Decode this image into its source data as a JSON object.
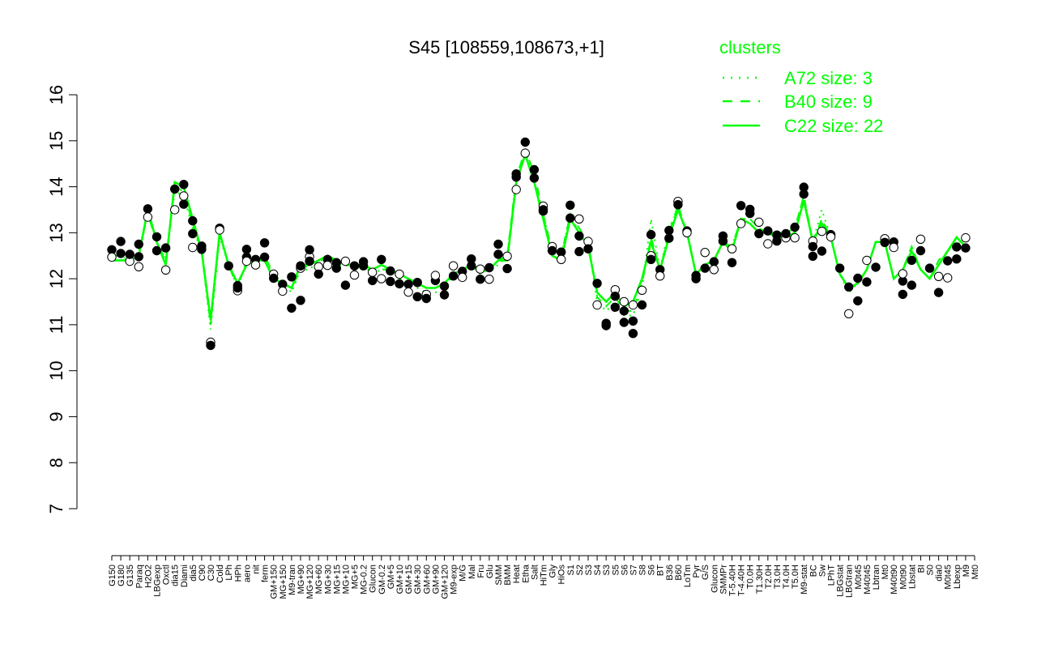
{
  "chart_data": {
    "type": "line",
    "title": "S45 [108559,108673,+1]",
    "ylim": [
      7,
      16
    ],
    "yticks": [
      7,
      8,
      9,
      10,
      11,
      12,
      13,
      14,
      15,
      16
    ],
    "tick_labels": [
      "G150",
      "G180",
      "G135",
      "Paraq",
      "H2O2",
      "LBGexp",
      "Oxctl",
      "dia15",
      "Diami",
      "dia5",
      "C90",
      "C30",
      "Cold",
      "LPh",
      "HPh",
      "aero",
      "nit",
      "ferm",
      "GM+150",
      "MG+150",
      "M9-tran",
      "MG+90",
      "MG+120",
      "MG+60",
      "MG+30",
      "MG+15",
      "MG+10",
      "MG+5",
      "MG-0.2",
      "Glucon",
      "GM-0.2",
      "GM+5",
      "GM+10",
      "GM+15",
      "GM+30",
      "GM+60",
      "GM+90",
      "GM+120",
      "M9-exp",
      "M/G",
      "Mal",
      "Fru",
      "Glu",
      "SMM",
      "BMM",
      "Heat",
      "Etha",
      "Salt",
      "HiTm",
      "Gly",
      "HiOs",
      "S1",
      "S2",
      "S3",
      "S4",
      "S3",
      "S5",
      "S6",
      "S7",
      "S8",
      "S6",
      "BT",
      "B36",
      "B60",
      "LoTm",
      "Pyr",
      "G/S",
      "Glucon",
      "SMMPr",
      "T-5.40H",
      "T-4.40H",
      "T0.0H",
      "T1.30H",
      "T2.0H",
      "T3.0H",
      "T4.0H",
      "T5.0H",
      "M9-stat",
      "BC",
      "Sw",
      "LPhT",
      "LBGstat",
      "LBGtran",
      "M0t45",
      "M40t45",
      "Lbtran",
      "Mt0",
      "M40t90",
      "M0t90",
      "Lbstat",
      "BI",
      "S0",
      "dia0",
      "M0t45",
      "Lbexp",
      "M9",
      "Mt0"
    ],
    "series": [
      {
        "name": "A72 size: 3",
        "style": "dotted",
        "values": [
          12.5,
          12.5,
          12.4,
          12.5,
          13.4,
          12.8,
          12.4,
          13.9,
          13.8,
          13.1,
          12.6,
          10.9,
          12.9,
          12.3,
          11.8,
          12.4,
          12.4,
          12.5,
          12.0,
          11.9,
          11.7,
          12.2,
          12.2,
          12.4,
          12.4,
          12.3,
          12.3,
          12.2,
          12.3,
          12.1,
          12.2,
          12.2,
          12.0,
          11.9,
          11.8,
          11.7,
          11.7,
          11.8,
          12.1,
          12.2,
          12.3,
          12.1,
          12.2,
          12.3,
          12.5,
          14.2,
          14.8,
          14.2,
          13.4,
          12.6,
          12.5,
          13.4,
          13.0,
          12.8,
          11.5,
          11.3,
          11.5,
          11.2,
          11.2,
          11.8,
          13.3,
          12.2,
          13.1,
          13.5,
          13.0,
          12.1,
          12.3,
          12.4,
          12.8,
          12.7,
          13.3,
          13.3,
          13.1,
          13.0,
          13.0,
          13.0,
          13.1,
          13.8,
          12.8,
          13.5,
          12.9,
          12.1,
          11.7,
          11.9,
          12.2,
          12.8,
          12.8,
          12.0,
          12.2,
          12.7,
          12.2,
          12.0,
          12.3,
          12.6,
          12.8,
          12.7
        ]
      },
      {
        "name": "B40 size: 9",
        "style": "dashed",
        "values": [
          12.5,
          12.5,
          12.5,
          12.6,
          13.4,
          12.8,
          12.4,
          14.0,
          13.9,
          13.2,
          12.6,
          11.0,
          13.0,
          12.3,
          11.8,
          12.4,
          12.4,
          12.5,
          12.1,
          11.9,
          11.8,
          12.2,
          12.3,
          12.4,
          12.4,
          12.4,
          12.3,
          12.3,
          12.3,
          12.2,
          12.2,
          12.2,
          12.0,
          12.0,
          11.9,
          11.8,
          11.8,
          11.9,
          12.1,
          12.2,
          12.3,
          12.2,
          12.2,
          12.4,
          12.5,
          14.2,
          14.8,
          14.3,
          13.4,
          12.6,
          12.5,
          13.4,
          13.1,
          12.8,
          11.6,
          11.4,
          11.6,
          11.3,
          11.3,
          11.9,
          12.9,
          12.2,
          13.0,
          13.6,
          13.0,
          12.1,
          12.3,
          12.4,
          12.8,
          12.7,
          13.3,
          13.3,
          13.1,
          13.0,
          13.0,
          13.0,
          13.1,
          13.8,
          12.8,
          13.3,
          12.9,
          12.1,
          11.8,
          11.9,
          12.2,
          12.8,
          12.8,
          12.0,
          12.2,
          12.7,
          12.2,
          12.0,
          12.4,
          12.6,
          12.9,
          12.7
        ]
      },
      {
        "name": "C22 size: 22",
        "style": "solid",
        "values": [
          12.4,
          12.4,
          12.4,
          12.5,
          13.5,
          12.8,
          12.3,
          14.1,
          14.0,
          13.3,
          12.6,
          11.1,
          13.0,
          12.3,
          11.9,
          12.3,
          12.4,
          12.4,
          12.0,
          11.9,
          11.8,
          12.3,
          12.3,
          12.4,
          12.5,
          12.4,
          12.3,
          12.3,
          12.3,
          12.2,
          12.3,
          12.2,
          12.1,
          12.0,
          11.9,
          11.8,
          11.8,
          11.9,
          12.1,
          12.2,
          12.3,
          12.2,
          12.2,
          12.4,
          12.4,
          14.1,
          14.7,
          14.1,
          13.3,
          12.5,
          12.4,
          13.3,
          13.0,
          12.7,
          11.7,
          11.5,
          11.7,
          11.4,
          11.5,
          12.0,
          12.8,
          12.2,
          12.9,
          13.5,
          13.0,
          12.1,
          12.3,
          12.4,
          12.8,
          12.6,
          13.3,
          13.2,
          13.0,
          13.0,
          12.9,
          12.9,
          13.0,
          13.7,
          12.8,
          13.2,
          12.9,
          12.1,
          11.8,
          11.9,
          12.2,
          12.8,
          12.8,
          12.0,
          12.2,
          12.6,
          12.2,
          12.0,
          12.3,
          12.6,
          12.9,
          12.7
        ]
      }
    ],
    "points": [
      {
        "x": 0,
        "y": 12.63
      },
      {
        "x": 0,
        "y": 12.47
      },
      {
        "x": 1,
        "y": 12.81
      },
      {
        "x": 1,
        "y": 12.55
      },
      {
        "x": 2,
        "y": 12.38
      },
      {
        "x": 2,
        "y": 12.53
      },
      {
        "x": 3,
        "y": 12.75
      },
      {
        "x": 3,
        "y": 12.26
      },
      {
        "x": 3,
        "y": 12.48
      },
      {
        "x": 4,
        "y": 13.52
      },
      {
        "x": 4,
        "y": 13.34
      },
      {
        "x": 5,
        "y": 12.91
      },
      {
        "x": 5,
        "y": 12.61
      },
      {
        "x": 6,
        "y": 12.19
      },
      {
        "x": 6,
        "y": 12.67
      },
      {
        "x": 7,
        "y": 13.95
      },
      {
        "x": 7,
        "y": 13.5
      },
      {
        "x": 8,
        "y": 14.05
      },
      {
        "x": 8,
        "y": 13.62
      },
      {
        "x": 8,
        "y": 13.8
      },
      {
        "x": 9,
        "y": 13.26
      },
      {
        "x": 9,
        "y": 12.98
      },
      {
        "x": 9,
        "y": 12.68
      },
      {
        "x": 10,
        "y": 12.71
      },
      {
        "x": 10,
        "y": 12.64
      },
      {
        "x": 11,
        "y": 10.62
      },
      {
        "x": 11,
        "y": 10.55
      },
      {
        "x": 12,
        "y": 13.1
      },
      {
        "x": 12,
        "y": 13.06
      },
      {
        "x": 13,
        "y": 12.28
      },
      {
        "x": 14,
        "y": 11.85
      },
      {
        "x": 14,
        "y": 11.74
      },
      {
        "x": 14,
        "y": 11.8
      },
      {
        "x": 15,
        "y": 12.47
      },
      {
        "x": 15,
        "y": 12.38
      },
      {
        "x": 15,
        "y": 12.64
      },
      {
        "x": 16,
        "y": 12.42
      },
      {
        "x": 16,
        "y": 12.3
      },
      {
        "x": 17,
        "y": 12.78
      },
      {
        "x": 17,
        "y": 12.47
      },
      {
        "x": 18,
        "y": 12.1
      },
      {
        "x": 18,
        "y": 12.01
      },
      {
        "x": 19,
        "y": 11.88
      },
      {
        "x": 19,
        "y": 11.73
      },
      {
        "x": 20,
        "y": 11.36
      },
      {
        "x": 20,
        "y": 12.04
      },
      {
        "x": 21,
        "y": 12.23
      },
      {
        "x": 21,
        "y": 11.53
      },
      {
        "x": 21,
        "y": 12.28
      },
      {
        "x": 22,
        "y": 12.48
      },
      {
        "x": 22,
        "y": 12.63
      },
      {
        "x": 22,
        "y": 12.38
      },
      {
        "x": 23,
        "y": 12.26
      },
      {
        "x": 23,
        "y": 12.1
      },
      {
        "x": 24,
        "y": 12.42
      },
      {
        "x": 24,
        "y": 12.29
      },
      {
        "x": 25,
        "y": 12.35
      },
      {
        "x": 25,
        "y": 12.23
      },
      {
        "x": 26,
        "y": 12.38
      },
      {
        "x": 26,
        "y": 11.86
      },
      {
        "x": 27,
        "y": 12.28
      },
      {
        "x": 27,
        "y": 12.08
      },
      {
        "x": 28,
        "y": 12.37
      },
      {
        "x": 28,
        "y": 12.28
      },
      {
        "x": 29,
        "y": 12.14
      },
      {
        "x": 29,
        "y": 11.96
      },
      {
        "x": 30,
        "y": 12.42
      },
      {
        "x": 30,
        "y": 12.0
      },
      {
        "x": 31,
        "y": 12.17
      },
      {
        "x": 31,
        "y": 11.94
      },
      {
        "x": 32,
        "y": 12.1
      },
      {
        "x": 32,
        "y": 11.89
      },
      {
        "x": 33,
        "y": 11.88
      },
      {
        "x": 33,
        "y": 11.71
      },
      {
        "x": 34,
        "y": 11.92
      },
      {
        "x": 34,
        "y": 11.61
      },
      {
        "x": 35,
        "y": 11.66
      },
      {
        "x": 35,
        "y": 11.57
      },
      {
        "x": 36,
        "y": 11.96
      },
      {
        "x": 36,
        "y": 12.07
      },
      {
        "x": 37,
        "y": 11.65
      },
      {
        "x": 37,
        "y": 11.84
      },
      {
        "x": 38,
        "y": 12.28
      },
      {
        "x": 38,
        "y": 12.06
      },
      {
        "x": 39,
        "y": 12.16
      },
      {
        "x": 39,
        "y": 12.03
      },
      {
        "x": 40,
        "y": 12.43
      },
      {
        "x": 40,
        "y": 12.28
      },
      {
        "x": 41,
        "y": 12.21
      },
      {
        "x": 41,
        "y": 11.99
      },
      {
        "x": 42,
        "y": 12.24
      },
      {
        "x": 42,
        "y": 11.99
      },
      {
        "x": 43,
        "y": 12.75
      },
      {
        "x": 43,
        "y": 12.53
      },
      {
        "x": 44,
        "y": 12.49
      },
      {
        "x": 44,
        "y": 12.22
      },
      {
        "x": 45,
        "y": 14.28
      },
      {
        "x": 45,
        "y": 13.94
      },
      {
        "x": 45,
        "y": 14.21
      },
      {
        "x": 46,
        "y": 14.97
      },
      {
        "x": 46,
        "y": 14.73
      },
      {
        "x": 47,
        "y": 14.37
      },
      {
        "x": 47,
        "y": 14.19
      },
      {
        "x": 48,
        "y": 13.58
      },
      {
        "x": 48,
        "y": 13.5
      },
      {
        "x": 48,
        "y": 13.47
      },
      {
        "x": 49,
        "y": 12.7
      },
      {
        "x": 49,
        "y": 12.61
      },
      {
        "x": 50,
        "y": 12.58
      },
      {
        "x": 50,
        "y": 12.42
      },
      {
        "x": 51,
        "y": 13.6
      },
      {
        "x": 51,
        "y": 13.32
      },
      {
        "x": 52,
        "y": 13.3
      },
      {
        "x": 52,
        "y": 12.93
      },
      {
        "x": 52,
        "y": 12.59
      },
      {
        "x": 53,
        "y": 12.81
      },
      {
        "x": 53,
        "y": 12.65
      },
      {
        "x": 54,
        "y": 11.9
      },
      {
        "x": 54,
        "y": 11.43
      },
      {
        "x": 55,
        "y": 11.03
      },
      {
        "x": 55,
        "y": 10.98
      },
      {
        "x": 56,
        "y": 11.76
      },
      {
        "x": 56,
        "y": 11.38
      },
      {
        "x": 56,
        "y": 11.62
      },
      {
        "x": 57,
        "y": 11.5
      },
      {
        "x": 57,
        "y": 11.05
      },
      {
        "x": 57,
        "y": 11.3
      },
      {
        "x": 58,
        "y": 11.43
      },
      {
        "x": 58,
        "y": 10.81
      },
      {
        "x": 58,
        "y": 11.08
      },
      {
        "x": 59,
        "y": 11.75
      },
      {
        "x": 59,
        "y": 11.43
      },
      {
        "x": 60,
        "y": 12.96
      },
      {
        "x": 60,
        "y": 12.5
      },
      {
        "x": 60,
        "y": 12.42
      },
      {
        "x": 61,
        "y": 12.2
      },
      {
        "x": 61,
        "y": 12.06
      },
      {
        "x": 62,
        "y": 12.88
      },
      {
        "x": 62,
        "y": 13.05
      },
      {
        "x": 63,
        "y": 13.68
      },
      {
        "x": 63,
        "y": 13.61
      },
      {
        "x": 64,
        "y": 13.04
      },
      {
        "x": 64,
        "y": 13.0
      },
      {
        "x": 65,
        "y": 12.07
      },
      {
        "x": 65,
        "y": 12.0
      },
      {
        "x": 66,
        "y": 12.57
      },
      {
        "x": 66,
        "y": 12.23
      },
      {
        "x": 67,
        "y": 12.37
      },
      {
        "x": 67,
        "y": 12.2
      },
      {
        "x": 68,
        "y": 12.93
      },
      {
        "x": 68,
        "y": 12.82
      },
      {
        "x": 69,
        "y": 12.65
      },
      {
        "x": 69,
        "y": 12.35
      },
      {
        "x": 70,
        "y": 13.59
      },
      {
        "x": 70,
        "y": 13.2
      },
      {
        "x": 71,
        "y": 13.42
      },
      {
        "x": 71,
        "y": 13.51
      },
      {
        "x": 72,
        "y": 13.23
      },
      {
        "x": 72,
        "y": 12.98
      },
      {
        "x": 73,
        "y": 13.04
      },
      {
        "x": 73,
        "y": 12.76
      },
      {
        "x": 74,
        "y": 12.95
      },
      {
        "x": 74,
        "y": 12.82
      },
      {
        "x": 75,
        "y": 12.89
      },
      {
        "x": 75,
        "y": 12.98
      },
      {
        "x": 76,
        "y": 13.12
      },
      {
        "x": 76,
        "y": 12.89
      },
      {
        "x": 77,
        "y": 13.99
      },
      {
        "x": 77,
        "y": 13.84
      },
      {
        "x": 78,
        "y": 12.82
      },
      {
        "x": 78,
        "y": 12.49
      },
      {
        "x": 78,
        "y": 12.7
      },
      {
        "x": 79,
        "y": 13.03
      },
      {
        "x": 79,
        "y": 12.6
      },
      {
        "x": 80,
        "y": 12.96
      },
      {
        "x": 80,
        "y": 12.91
      },
      {
        "x": 81,
        "y": 12.23
      },
      {
        "x": 82,
        "y": 11.82
      },
      {
        "x": 82,
        "y": 11.24
      },
      {
        "x": 83,
        "y": 12.01
      },
      {
        "x": 83,
        "y": 11.52
      },
      {
        "x": 84,
        "y": 12.4
      },
      {
        "x": 84,
        "y": 11.93
      },
      {
        "x": 85,
        "y": 12.25
      },
      {
        "x": 86,
        "y": 12.87
      },
      {
        "x": 86,
        "y": 12.79
      },
      {
        "x": 87,
        "y": 12.8
      },
      {
        "x": 87,
        "y": 12.68
      },
      {
        "x": 88,
        "y": 11.95
      },
      {
        "x": 88,
        "y": 11.66
      },
      {
        "x": 88,
        "y": 12.11
      },
      {
        "x": 89,
        "y": 12.4
      },
      {
        "x": 89,
        "y": 11.86
      },
      {
        "x": 90,
        "y": 12.86
      },
      {
        "x": 90,
        "y": 12.61
      },
      {
        "x": 91,
        "y": 12.23
      },
      {
        "x": 92,
        "y": 12.05
      },
      {
        "x": 92,
        "y": 11.7
      },
      {
        "x": 93,
        "y": 12.39
      },
      {
        "x": 93,
        "y": 12.02
      },
      {
        "x": 94,
        "y": 12.69
      },
      {
        "x": 94,
        "y": 12.43
      },
      {
        "x": 95,
        "y": 12.89
      },
      {
        "x": 95,
        "y": 12.67
      }
    ],
    "legend": {
      "title": "clusters",
      "position": "top-right"
    },
    "colors": {
      "lines": "#00ff00",
      "legend": "#00ff00",
      "axis": "#000000",
      "marker_fill_dark": "#000000",
      "marker_fill_light": "#ffffff"
    }
  }
}
